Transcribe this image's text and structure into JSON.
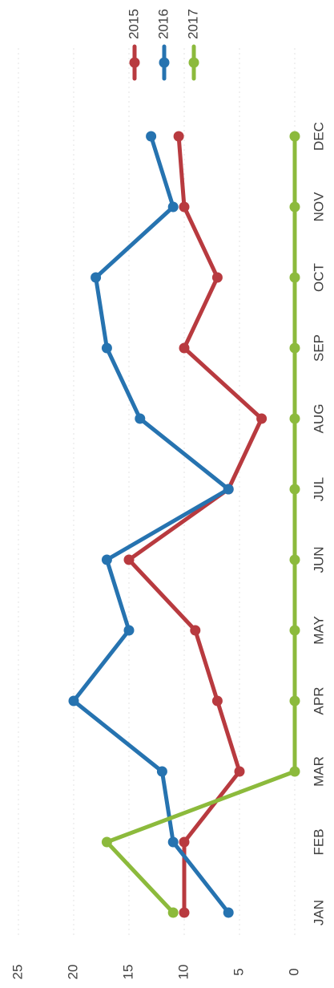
{
  "chart_data": {
    "type": "line",
    "orientation": "rotated-90-clockwise",
    "categories": [
      "JAN",
      "FEB",
      "MAR",
      "APR",
      "MAY",
      "JUN",
      "JUL",
      "AUG",
      "SEP",
      "OCT",
      "NOV",
      "DEC"
    ],
    "series": [
      {
        "name": "2015",
        "color": "#b83a3f",
        "values": [
          10,
          10,
          5,
          7,
          9,
          15,
          6,
          3,
          10,
          7,
          10,
          10.5
        ]
      },
      {
        "name": "2016",
        "color": "#2673b0",
        "values": [
          6,
          11,
          12,
          20,
          15,
          17,
          6,
          14,
          17,
          18,
          11,
          13
        ]
      },
      {
        "name": "2017",
        "color": "#8cba3c",
        "values": [
          11,
          17,
          0,
          0,
          0,
          0,
          0,
          0,
          0,
          0,
          0,
          0
        ]
      }
    ],
    "yticks": [
      "0",
      "5",
      "10",
      "15",
      "20",
      "25"
    ],
    "ylim": [
      0,
      25
    ],
    "grid": true,
    "legend": "top-right",
    "title": "",
    "xlabel": "",
    "ylabel": ""
  }
}
